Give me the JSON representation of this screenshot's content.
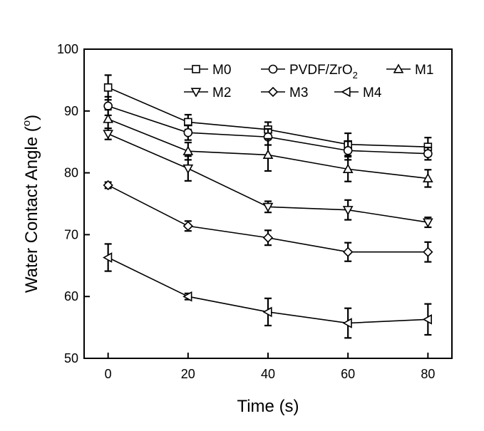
{
  "chart_data": {
    "type": "line",
    "xlabel": "Time (s)",
    "ylabel": "Water Contact Angle (",
    "ylabel_unit_sup": "o",
    "ylabel_suffix": ")",
    "xlim": [
      -6,
      86
    ],
    "ylim": [
      50,
      100
    ],
    "xticks": [
      0,
      20,
      40,
      60,
      80
    ],
    "yticks": [
      50,
      60,
      70,
      80,
      90,
      100
    ],
    "x": [
      0,
      20,
      40,
      60,
      80
    ],
    "grid": false,
    "legend_position": "top",
    "series": [
      {
        "name": "M0",
        "marker": "square",
        "values": [
          93.8,
          88.2,
          87.0,
          84.6,
          84.2
        ],
        "errors": [
          2.0,
          1.2,
          1.2,
          1.8,
          1.5
        ]
      },
      {
        "name": "PVDF/ZrO",
        "name_sub": "2",
        "marker": "circle",
        "values": [
          90.8,
          86.5,
          85.8,
          83.6,
          83.1
        ],
        "errors": [
          1.5,
          1.2,
          1.3,
          1.5,
          1.0
        ]
      },
      {
        "name": "M1",
        "marker": "triangle-up",
        "values": [
          88.7,
          83.5,
          82.9,
          80.6,
          79.1
        ],
        "errors": [
          1.5,
          1.4,
          2.6,
          2.0,
          1.4
        ]
      },
      {
        "name": "M2",
        "marker": "triangle-down",
        "values": [
          86.3,
          80.7,
          74.5,
          74.0,
          72.0
        ],
        "errors": [
          0.9,
          2.0,
          0.9,
          1.6,
          0.8
        ]
      },
      {
        "name": "M3",
        "marker": "diamond",
        "values": [
          78.0,
          71.4,
          69.5,
          67.2,
          67.2
        ],
        "errors": [
          0.5,
          0.8,
          1.2,
          1.5,
          1.6
        ]
      },
      {
        "name": "M4",
        "marker": "triangle-left",
        "values": [
          66.3,
          60.0,
          57.5,
          55.7,
          56.3
        ],
        "errors": [
          2.2,
          0.5,
          2.2,
          2.4,
          2.5
        ]
      }
    ]
  }
}
